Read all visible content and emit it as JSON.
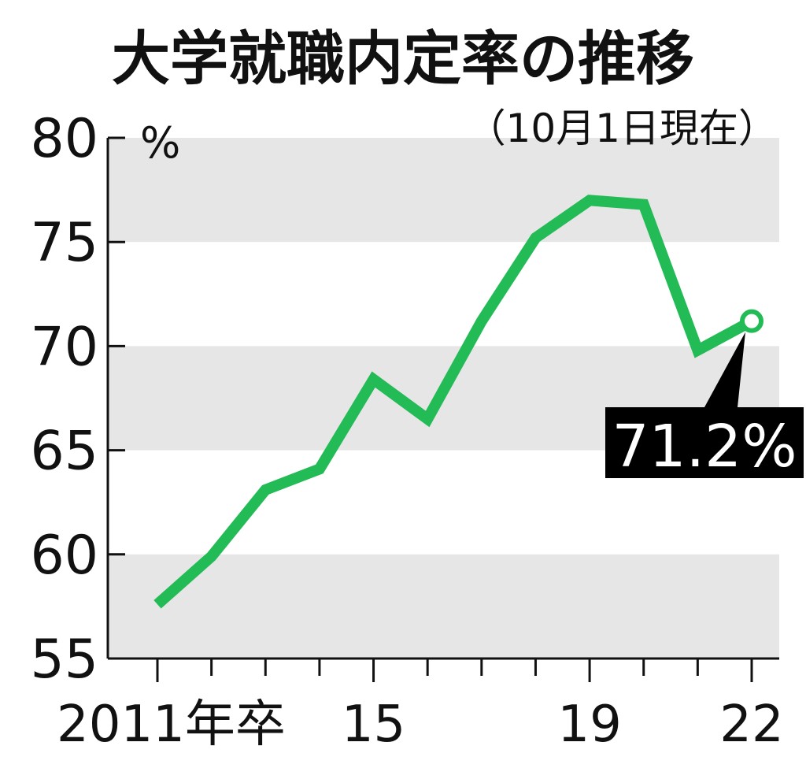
{
  "chart_data": {
    "type": "line",
    "title": "大学就職内定率の推移",
    "subtitle": "（10月1日現在）",
    "ylabel_unit": "%",
    "ylim": [
      55,
      80
    ],
    "y_ticks": [
      "80",
      "75",
      "70",
      "65",
      "60",
      "55"
    ],
    "x_tick_labels": [
      {
        "x": 2011,
        "label": "2011年卒"
      },
      {
        "x": 2015,
        "label": "15"
      },
      {
        "x": 2019,
        "label": "19"
      },
      {
        "x": 2022,
        "label": "22"
      }
    ],
    "x": [
      2011,
      2012,
      2013,
      2014,
      2015,
      2016,
      2017,
      2018,
      2019,
      2020,
      2021,
      2022
    ],
    "series": [
      {
        "values": [
          57.6,
          59.9,
          63.1,
          64.1,
          68.4,
          66.5,
          71.2,
          75.2,
          77.0,
          76.8,
          69.8,
          71.2
        ]
      }
    ],
    "grid_bands": true,
    "callout": {
      "label": "71.2%",
      "x": 2022
    },
    "colors": {
      "line": "#22bb55",
      "band": "#e6e6e6",
      "callout_bg": "#000000",
      "axis": "#111111"
    }
  }
}
